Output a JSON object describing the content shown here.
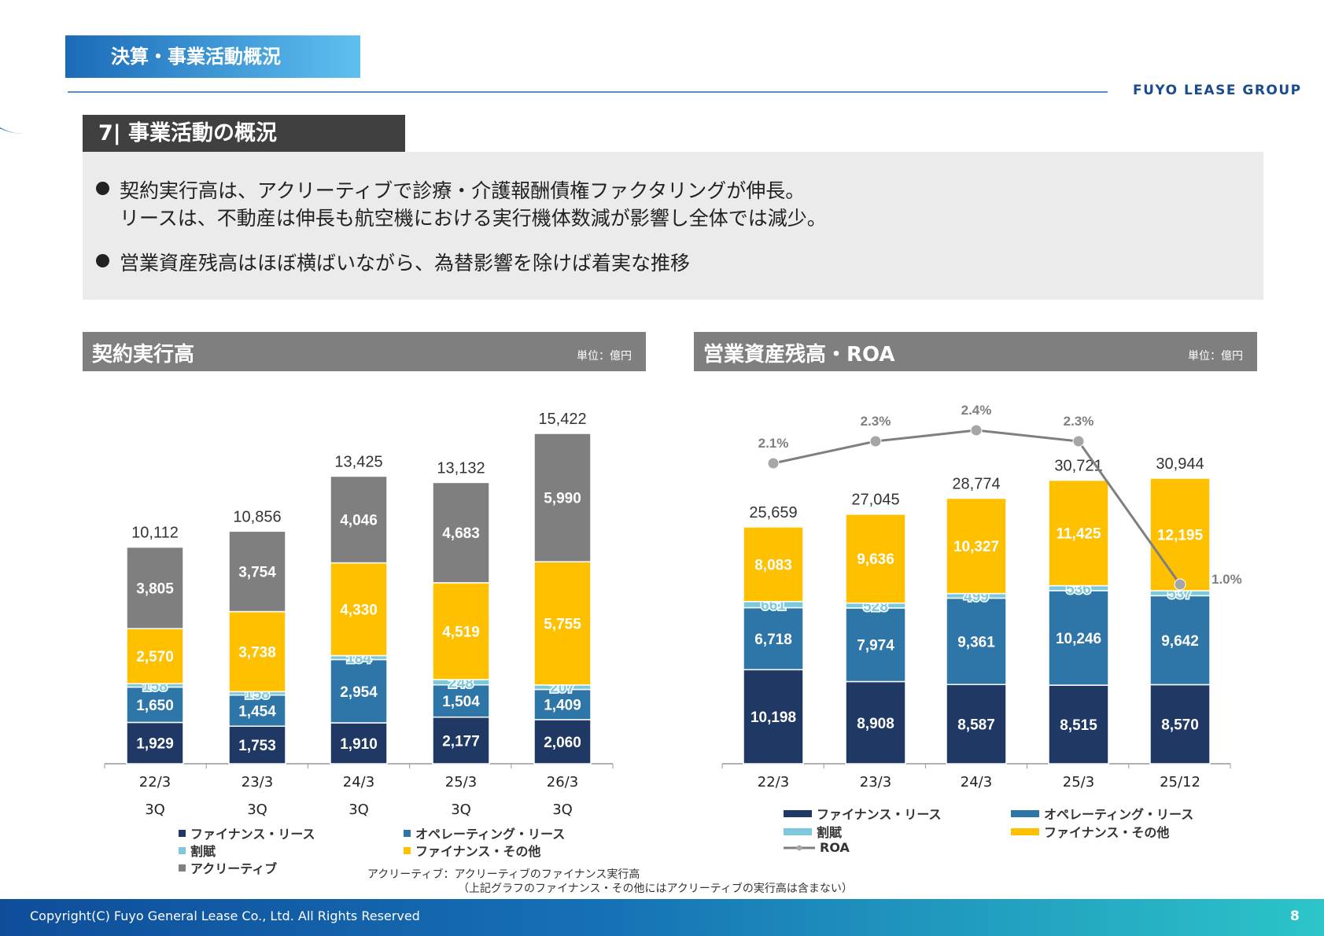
{
  "header": {
    "title": "決算・事業活動概況",
    "logo": "FUYO LEASE GROUP"
  },
  "section": {
    "title": "7| 事業活動の概況"
  },
  "bullets": [
    [
      "契約実行高は、アクリーティブで診療・介護報酬債権ファクタリングが伸長。",
      "リースは、不動産は伸長も航空機における実行機体数減が影響し全体では減少。"
    ],
    [
      "営業資産残高はほぼ横ばいながら、為替影響を除けば着実な推移"
    ]
  ],
  "colors": {
    "finance_lease": "#1f3864",
    "operating_lease": "#2e75a8",
    "installment": "#7cc8dc",
    "finance_other": "#ffc000",
    "accretive": "#7f7f7f",
    "roa": "#7f7f7f"
  },
  "chart_data": [
    {
      "type": "bar",
      "stacked": true,
      "title": "契約実行高",
      "unit": "単位：億円",
      "categories": [
        "22/3\n3Q",
        "23/3\n3Q",
        "24/3\n3Q",
        "25/3\n3Q",
        "26/3\n3Q"
      ],
      "category_lines": [
        [
          "22/3",
          "3Q"
        ],
        [
          "23/3",
          "3Q"
        ],
        [
          "24/3",
          "3Q"
        ],
        [
          "25/3",
          "3Q"
        ],
        [
          "26/3",
          "3Q"
        ]
      ],
      "series": [
        {
          "name": "ファイナンス・リース",
          "values": [
            1929,
            1753,
            1910,
            2177,
            2060
          ]
        },
        {
          "name": "オペレーティング・リース",
          "values": [
            1650,
            1454,
            2954,
            1504,
            1409
          ]
        },
        {
          "name": "割賦",
          "values": [
            158,
            158,
            184,
            248,
            207
          ]
        },
        {
          "name": "ファイナンス・その他",
          "values": [
            2570,
            3738,
            4330,
            4519,
            5755
          ]
        },
        {
          "name": "アクリーティブ",
          "values": [
            3805,
            3754,
            4046,
            4683,
            5990
          ]
        }
      ],
      "totals": [
        10112,
        10856,
        13425,
        13132,
        15422
      ],
      "legend": "bottom",
      "note": [
        "アクリーティブ：アクリーティブのファイナンス実行高",
        "（上記グラフのファイナンス・その他にはアクリーティブの実行高は含まない）"
      ]
    },
    {
      "type": "bar+line",
      "stacked": true,
      "title": "営業資産残高・ROA",
      "unit": "単位：億円",
      "categories": [
        "22/3",
        "23/3",
        "24/3",
        "25/3",
        "25/12"
      ],
      "series": [
        {
          "name": "ファイナンス・リース",
          "values": [
            10198,
            8908,
            8587,
            8515,
            8570
          ]
        },
        {
          "name": "オペレーティング・リース",
          "values": [
            6718,
            7974,
            9361,
            10246,
            9642
          ]
        },
        {
          "name": "割賦",
          "values": [
            661,
            528,
            499,
            536,
            537
          ]
        },
        {
          "name": "ファイナンス・その他",
          "values": [
            8083,
            9636,
            10327,
            11425,
            12195
          ]
        }
      ],
      "totals": [
        25659,
        27045,
        28774,
        30721,
        30944
      ],
      "line": {
        "name": "ROA",
        "values": [
          2.1,
          2.3,
          2.4,
          2.3,
          1.0
        ],
        "labels": [
          "2.1%",
          "2.3%",
          "2.4%",
          "2.3%",
          "1.0%"
        ]
      },
      "legend": "bottom"
    }
  ],
  "footer": {
    "copyright": "Copyright(C) Fuyo General Lease Co., Ltd. All Rights Reserved",
    "page": "8"
  }
}
